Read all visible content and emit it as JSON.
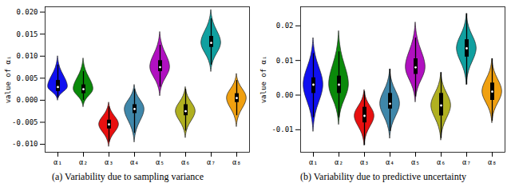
{
  "chart_data": [
    {
      "type": "violin",
      "caption": "(a) Variability due to sampling variance",
      "ylabel": "value of αᵢ",
      "categories": [
        "α₁",
        "α₂",
        "α₃",
        "α₄",
        "α₅",
        "α₆",
        "α₇",
        "α₈"
      ],
      "colors": [
        "#1010f0",
        "#0a8a0a",
        "#e81010",
        "#3f87aa",
        "#b010c0",
        "#b0b020",
        "#10a0a0",
        "#f0a010"
      ],
      "ylim": [
        -0.0118,
        0.0212
      ],
      "yticks": [
        {
          "value": -0.01,
          "label": "-0.010"
        },
        -0.005,
        {
          "value": 0,
          "label": "0.000"
        },
        0.005,
        {
          "value": 0.01,
          "label": "0.010"
        },
        0.015,
        {
          "value": 0.02,
          "label": "0.020"
        }
      ],
      "violins": [
        {
          "q1": 0.002,
          "median": 0.003,
          "q3": 0.0045,
          "whisker": [
            0.0005,
            0.008
          ],
          "density": {
            "values": [
              0,
              0.00075,
              0.0015,
              0.00225,
              0.003,
              0.00475,
              0.0065,
              0.00825,
              0.01
            ],
            "widths": [
              0,
              0.08,
              0.32,
              0.75,
              1,
              0.75,
              0.32,
              0.08,
              0
            ]
          }
        },
        {
          "q1": 0.0015,
          "median": 0.0025,
          "q3": 0.0035,
          "whisker": [
            0,
            0.0065
          ],
          "density": {
            "values": [
              -0.0015,
              -0.0005,
              0.0005,
              0.0015,
              0.0025,
              0.00425,
              0.006,
              0.00775,
              0.0095
            ],
            "widths": [
              0,
              0.08,
              0.32,
              0.75,
              1,
              0.75,
              0.32,
              0.08,
              0
            ]
          }
        },
        {
          "q1": -0.0065,
          "median": -0.0055,
          "q3": -0.0045,
          "whisker": [
            -0.0095,
            -0.0015
          ],
          "density": {
            "values": [
              -0.0105,
              -0.00925,
              -0.008,
              -0.00675,
              -0.0055,
              -0.00425,
              -0.003,
              -0.00175,
              -0.0005
            ],
            "widths": [
              0,
              0.08,
              0.32,
              0.75,
              1,
              0.75,
              0.32,
              0.08,
              0
            ]
          }
        },
        {
          "q1": -0.003,
          "median": -0.002,
          "q3": -0.001,
          "whisker": [
            -0.0075,
            0.0025
          ],
          "density": {
            "values": [
              -0.0095,
              -0.007625,
              -0.00575,
              -0.003875,
              -0.002,
              -0.000625,
              0.00075,
              0.002125,
              0.0035
            ],
            "widths": [
              0,
              0.08,
              0.32,
              0.75,
              1,
              0.75,
              0.32,
              0.08,
              0
            ]
          }
        },
        {
          "q1": 0.0065,
          "median": 0.0075,
          "q3": 0.009,
          "whisker": [
            0.003,
            0.0125
          ],
          "density": {
            "values": [
              0.001,
              0.002625,
              0.00425,
              0.005875,
              0.0075,
              0.0095,
              0.0115,
              0.0135,
              0.0155
            ],
            "widths": [
              0,
              0.08,
              0.32,
              0.75,
              1,
              0.75,
              0.32,
              0.08,
              0
            ]
          }
        },
        {
          "q1": -0.0035,
          "median": -0.0025,
          "q3": -0.001,
          "whisker": [
            -0.007,
            0.0025
          ],
          "density": {
            "values": [
              -0.0085,
              -0.007,
              -0.0055,
              -0.004,
              -0.0025,
              -0.001125,
              0.00025,
              0.001625,
              0.003
            ],
            "widths": [
              0,
              0.08,
              0.32,
              0.75,
              1,
              0.75,
              0.32,
              0.08,
              0
            ]
          }
        },
        {
          "q1": 0.012,
          "median": 0.013,
          "q3": 0.0145,
          "whisker": [
            0.008,
            0.0185
          ],
          "density": {
            "values": [
              0.0065,
              0.008125,
              0.00975,
              0.011375,
              0.013,
              0.014875,
              0.01675,
              0.018625,
              0.0205
            ],
            "widths": [
              0,
              0.08,
              0.32,
              0.75,
              1,
              0.75,
              0.32,
              0.08,
              0
            ]
          }
        },
        {
          "q1": -0.0005,
          "median": 0.0005,
          "q3": 0.0015,
          "whisker": [
            -0.0035,
            0.0045
          ],
          "density": {
            "values": [
              -0.006,
              -0.004375,
              -0.00275,
              -0.001125,
              0.0005,
              0.001875,
              0.00325,
              0.004625,
              0.006
            ],
            "widths": [
              0,
              0.08,
              0.32,
              0.75,
              1,
              0.75,
              0.32,
              0.08,
              0
            ]
          }
        }
      ]
    },
    {
      "type": "violin",
      "caption": "(b) Variability due to predictive uncertainty",
      "ylabel": "value of αᵢ",
      "categories": [
        "α₁",
        "α₂",
        "α₃",
        "α₄",
        "α₅",
        "α₆",
        "α₇",
        "α₈"
      ],
      "colors": [
        "#1010f0",
        "#0a8a0a",
        "#e81010",
        "#3f87aa",
        "#b010c0",
        "#b0b020",
        "#10a0a0",
        "#f0a010"
      ],
      "ylim": [
        -0.0165,
        0.0255
      ],
      "yticks": [
        -0.01,
        {
          "value": 0,
          "label": "0.00"
        },
        0.01,
        0.02
      ],
      "violins": [
        {
          "q1": 0.0005,
          "median": 0.003,
          "q3": 0.005,
          "whisker": [
            -0.0065,
            0.012
          ],
          "density": {
            "values": [
              -0.0105,
              -0.007125,
              -0.00375,
              -0.000375,
              0.003,
              0.006375,
              0.00975,
              0.013125,
              0.0165
            ],
            "widths": [
              0,
              0.08,
              0.32,
              0.75,
              1,
              0.75,
              0.32,
              0.08,
              0
            ]
          }
        },
        {
          "q1": 0.0005,
          "median": 0.003,
          "q3": 0.0055,
          "whisker": [
            -0.0065,
            0.0125
          ],
          "density": {
            "values": [
              -0.0085,
              -0.005625,
              -0.00275,
              0.000125,
              0.003,
              0.006875,
              0.01075,
              0.014625,
              0.0185
            ],
            "widths": [
              0,
              0.08,
              0.32,
              0.75,
              1,
              0.75,
              0.32,
              0.08,
              0
            ]
          }
        },
        {
          "q1": -0.008,
          "median": -0.006,
          "q3": -0.0035,
          "whisker": [
            -0.0145,
            0.001
          ],
          "density": {
            "values": [
              -0.0145,
              -0.012375,
              -0.01025,
              -0.008125,
              -0.006,
              -0.004125,
              -0.00225,
              -0.000375,
              0.0015
            ],
            "widths": [
              0,
              0.08,
              0.32,
              0.75,
              1,
              0.75,
              0.32,
              0.08,
              0
            ]
          }
        },
        {
          "q1": -0.004,
          "median": -0.0025,
          "q3": 0.0005,
          "whisker": [
            -0.0105,
            0.0075
          ],
          "density": {
            "values": [
              -0.0125,
              -0.01,
              -0.0075,
              -0.005,
              -0.0025,
              0,
              0.0025,
              0.005,
              0.0075
            ],
            "widths": [
              0,
              0.08,
              0.32,
              0.75,
              1,
              0.75,
              0.32,
              0.08,
              0
            ]
          }
        },
        {
          "q1": 0.006,
          "median": 0.008,
          "q3": 0.0105,
          "whisker": [
            -0.0005,
            0.0165
          ],
          "density": {
            "values": [
              -0.002,
              0.0005,
              0.003,
              0.0055,
              0.008,
              0.01125,
              0.0145,
              0.01775,
              0.021
            ],
            "widths": [
              0,
              0.08,
              0.32,
              0.75,
              1,
              0.75,
              0.32,
              0.08,
              0
            ]
          }
        },
        {
          "q1": -0.006,
          "median": -0.003,
          "q3": 0.0005,
          "whisker": [
            -0.0125,
            0.0065
          ],
          "density": {
            "values": [
              -0.013,
              -0.0105,
              -0.008,
              -0.0055,
              -0.003,
              -0.000625,
              0.00175,
              0.004125,
              0.0065
            ],
            "widths": [
              0,
              0.08,
              0.32,
              0.75,
              1,
              0.75,
              0.32,
              0.08,
              0
            ]
          }
        },
        {
          "q1": 0.011,
          "median": 0.0135,
          "q3": 0.016,
          "whisker": [
            0.003,
            0.0235
          ],
          "density": {
            "values": [
              0.003,
              0.005625,
              0.00825,
              0.010875,
              0.0135,
              0.016,
              0.0185,
              0.021,
              0.0235
            ],
            "widths": [
              0,
              0.08,
              0.32,
              0.75,
              1,
              0.75,
              0.32,
              0.08,
              0
            ]
          }
        },
        {
          "q1": -0.0015,
          "median": 0.001,
          "q3": 0.0035,
          "whisker": [
            -0.0075,
            0.0105
          ],
          "density": {
            "values": [
              -0.008,
              -0.00575,
              -0.0035,
              -0.00125,
              0.001,
              0.003375,
              0.00575,
              0.008125,
              0.0105
            ],
            "widths": [
              0,
              0.08,
              0.32,
              0.75,
              1,
              0.75,
              0.32,
              0.08,
              0
            ]
          }
        }
      ]
    }
  ]
}
